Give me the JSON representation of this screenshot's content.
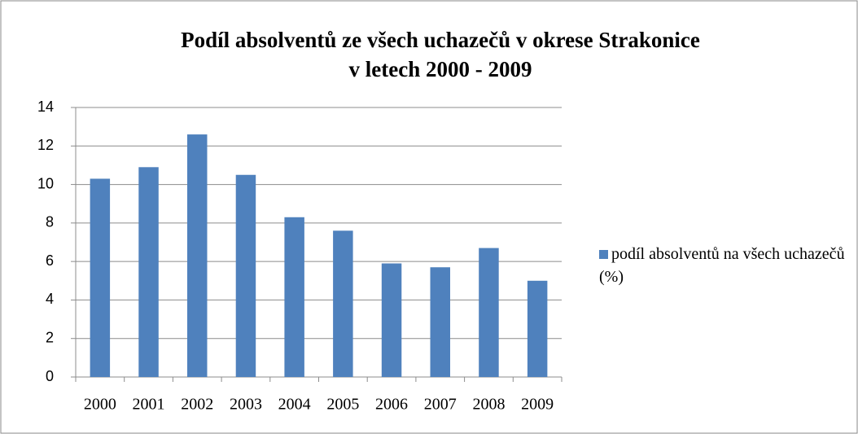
{
  "chart_data": {
    "type": "bar",
    "title": [
      "Podíl absolventů ze  všech uchazečů v okrese Strakonice",
      "v letech 2000 - 2009"
    ],
    "categories": [
      "2000",
      "2001",
      "2002",
      "2003",
      "2004",
      "2005",
      "2006",
      "2007",
      "2008",
      "2009"
    ],
    "series": [
      {
        "name": "podíl absolventů na všech uchazečů (%)",
        "color": "#4f81bd",
        "values": [
          10.3,
          10.9,
          12.6,
          10.5,
          8.3,
          7.6,
          5.9,
          5.7,
          6.7,
          5.0
        ]
      }
    ],
    "ylim": [
      0,
      14
    ],
    "yticks": [
      0,
      2,
      4,
      6,
      8,
      10,
      12,
      14
    ],
    "grid": true,
    "legend": "right"
  }
}
